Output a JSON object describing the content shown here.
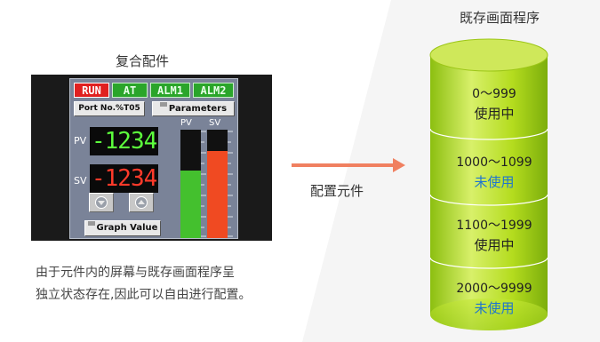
{
  "title_composite": "复合配件",
  "title_program": "既存画面程序",
  "arrow_label": "配置元件",
  "description": [
    "由于元件内的屏幕与既存画面程序呈",
    "独立状态存在,因此可以自由进行配置。"
  ],
  "hmi": {
    "badges": {
      "run": "RUN",
      "at": "AT",
      "alm1": "ALM1",
      "alm2": "ALM2"
    },
    "port_label": "Port No.%T05",
    "parameters_label": "Parameters",
    "pv_label": "PV",
    "sv_label": "SV",
    "pv_value": "-1234",
    "sv_value": "-1234",
    "bar_pv_header": "PV",
    "bar_sv_header": "SV",
    "graph_value_label": "Graph Value",
    "pv_bar_level": 0.62,
    "sv_bar_level": 0.8,
    "colors": {
      "panel": "#7a8398",
      "pv": "#44c02e",
      "sv": "#f04a22",
      "run": "#e02020",
      "ok": "#2aa52a"
    }
  },
  "program_segments": [
    {
      "range": "0～999",
      "status": "使用中",
      "used": true
    },
    {
      "range": "1000～1099",
      "status": "未使用",
      "used": false
    },
    {
      "range": "1100～1999",
      "status": "使用中",
      "used": true
    },
    {
      "range": "2000～9999",
      "status": "未使用",
      "used": false
    }
  ],
  "colors": {
    "arrow": "#f08060",
    "cylinder": "#a8d414",
    "unused_text": "#1e74d0"
  }
}
